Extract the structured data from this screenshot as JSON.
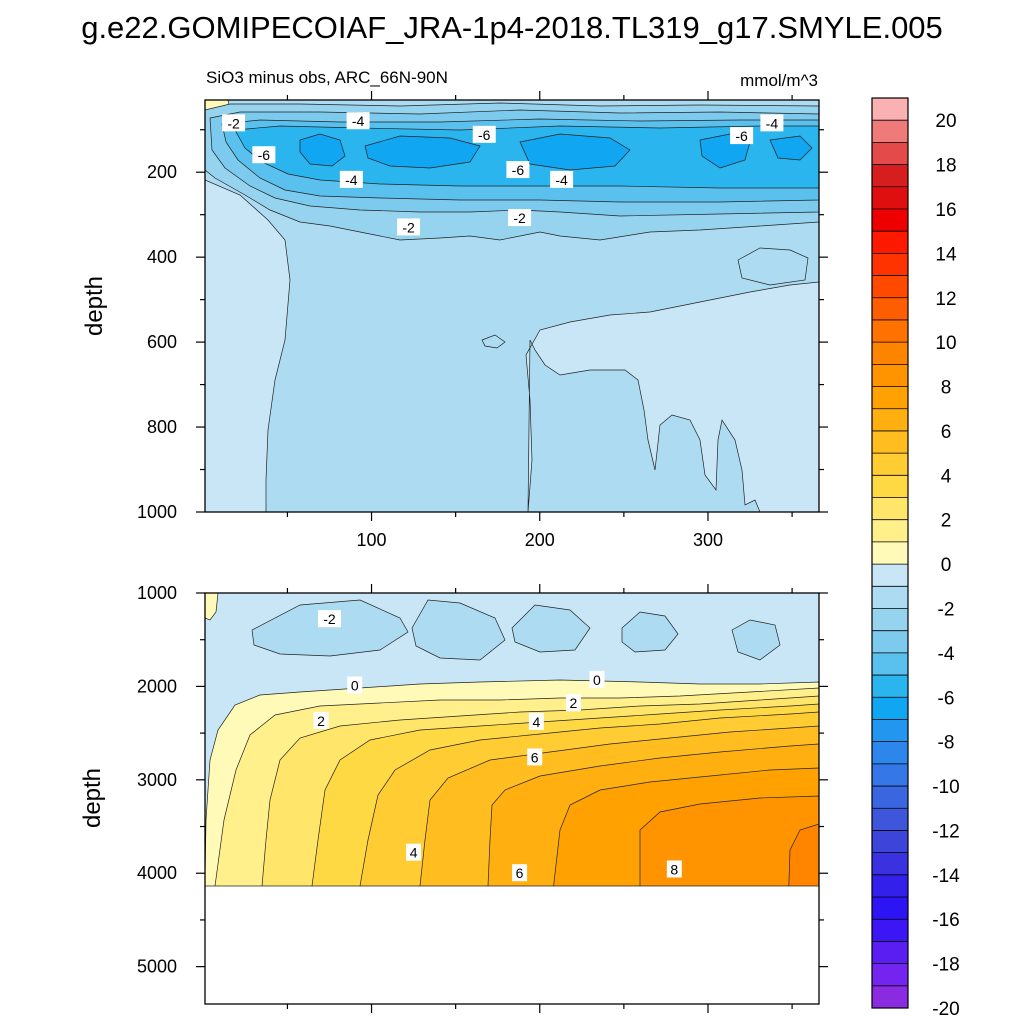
{
  "figure_title": "g.e22.GOMIPECOIAF_JRA-1p4-2018.TL319_g17.SMYLE.005",
  "panel_title_left": "SiO3 minus obs, ARC_66N-90N",
  "panel_title_right": "mmol/m^3",
  "chart_data": [
    {
      "type": "contour",
      "panel": "upper",
      "ylabel": "depth",
      "xlabel": "",
      "xlim": [
        1,
        366
      ],
      "ylim": [
        1000,
        30
      ],
      "xticks": [
        100,
        200,
        300
      ],
      "yticks": [
        200,
        400,
        600,
        800,
        1000
      ],
      "contour_labels": [
        {
          "x": 18,
          "y": 85,
          "text": "-2"
        },
        {
          "x": 92,
          "y": 80,
          "text": "-4"
        },
        {
          "x": 167,
          "y": 112,
          "text": "-6"
        },
        {
          "x": 36,
          "y": 160,
          "text": "-6"
        },
        {
          "x": 88,
          "y": 218,
          "text": "-4"
        },
        {
          "x": 187,
          "y": 195,
          "text": "-6"
        },
        {
          "x": 213,
          "y": 218,
          "text": "-4"
        },
        {
          "x": 320,
          "y": 115,
          "text": "-6"
        },
        {
          "x": 338,
          "y": 85,
          "text": "-4"
        },
        {
          "x": 122,
          "y": 330,
          "text": "-2"
        },
        {
          "x": 188,
          "y": 308,
          "text": "-2"
        }
      ]
    },
    {
      "type": "contour",
      "panel": "lower",
      "ylabel": "depth",
      "xlabel": "",
      "xlim": [
        1,
        366
      ],
      "ylim": [
        5400,
        1000
      ],
      "yticks": [
        1000,
        2000,
        3000,
        4000,
        5000
      ],
      "seafloor_depth": 4100,
      "contour_labels": [
        {
          "x": 75,
          "y": 1280,
          "text": "-2"
        },
        {
          "x": 90,
          "y": 1990,
          "text": "0"
        },
        {
          "x": 234,
          "y": 1930,
          "text": "0"
        },
        {
          "x": 70,
          "y": 2370,
          "text": "2"
        },
        {
          "x": 220,
          "y": 2180,
          "text": "2"
        },
        {
          "x": 198,
          "y": 2380,
          "text": "4"
        },
        {
          "x": 197,
          "y": 2760,
          "text": "6"
        },
        {
          "x": 125,
          "y": 3780,
          "text": "4"
        },
        {
          "x": 188,
          "y": 4000,
          "text": "6"
        },
        {
          "x": 280,
          "y": 3960,
          "text": "8"
        }
      ]
    }
  ],
  "colorbar": {
    "labels": [
      "20",
      "18",
      "16",
      "14",
      "12",
      "10",
      "8",
      "6",
      "4",
      "2",
      "0",
      "-2",
      "-4",
      "-6",
      "-8",
      "-10",
      "-12",
      "-14",
      "-16",
      "-18",
      "-20"
    ],
    "colors": [
      "#f9b1b1",
      "#ef7a7a",
      "#e44a4a",
      "#d71e1e",
      "#e00f0f",
      "#ee0000",
      "#fd1a00",
      "#ff3300",
      "#ff4a00",
      "#ff5e00",
      "#ff7200",
      "#ff8400",
      "#ff9400",
      "#ffa100",
      "#ffaf10",
      "#ffbd20",
      "#ffcc33",
      "#ffd944",
      "#ffe66a",
      "#fff08c",
      "#fffab8",
      "#c8e6f6",
      "#addcf2",
      "#96d3ef",
      "#7ccaed",
      "#5ac0ee",
      "#2ab5ef",
      "#10a6f2",
      "#2396f0",
      "#2d86ec",
      "#3577e6",
      "#3a67e0",
      "#3d56da",
      "#3d44d9",
      "#3a31e0",
      "#3320ea",
      "#2c14f4",
      "#3d16f5",
      "#5a1ef3",
      "#7424ef",
      "#8a2be2"
    ]
  }
}
